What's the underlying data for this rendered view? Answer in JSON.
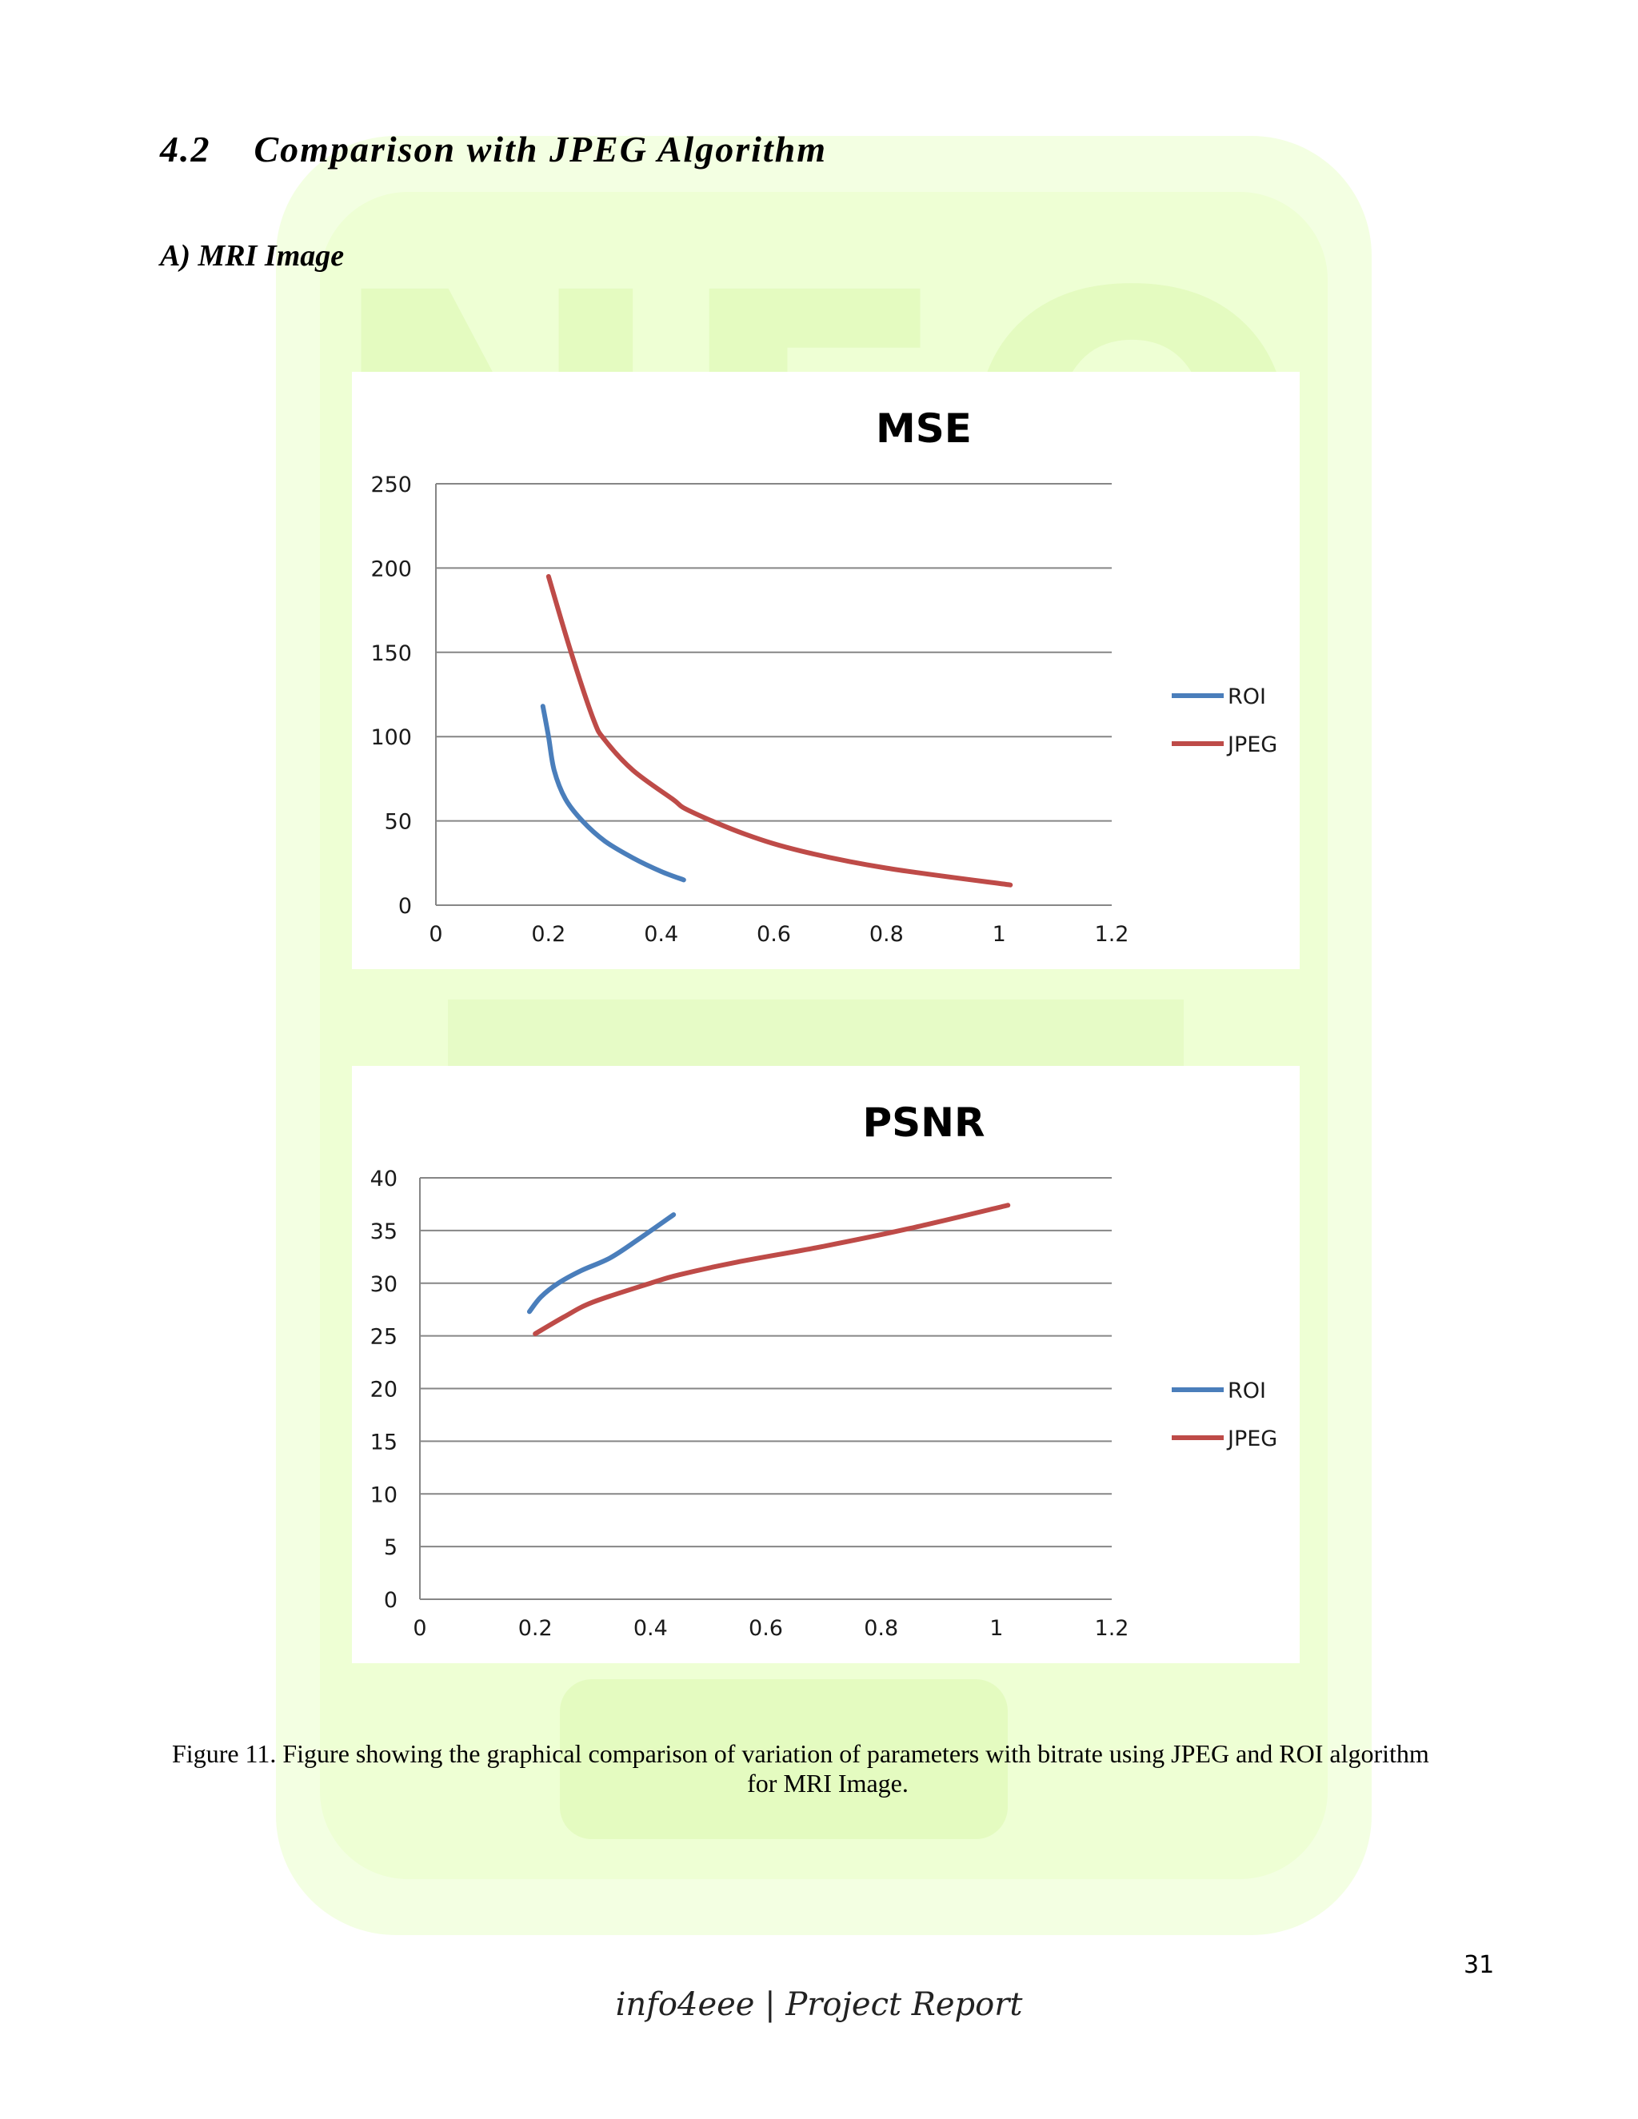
{
  "section_heading": {
    "number": "4.2",
    "title": "Comparison with JPEG Algorithm"
  },
  "sub_heading": "A) MRI Image",
  "chart_data": [
    {
      "type": "line",
      "title": "MSE",
      "xlabel": "",
      "ylabel": "",
      "xlim": [
        0,
        1.2
      ],
      "ylim": [
        0,
        250
      ],
      "x_ticks": [
        "0",
        "0.2",
        "0.4",
        "0.6",
        "0.8",
        "1",
        "1.2"
      ],
      "y_ticks": [
        "0",
        "50",
        "100",
        "150",
        "200",
        "250"
      ],
      "grid": true,
      "legend_position": "right",
      "series": [
        {
          "name": "ROI",
          "color": "#4a7ebb",
          "x": [
            0.19,
            0.2,
            0.21,
            0.23,
            0.26,
            0.3,
            0.35,
            0.4,
            0.44
          ],
          "y": [
            118,
            100,
            80,
            63,
            50,
            38,
            28,
            20,
            15
          ]
        },
        {
          "name": "JPEG",
          "color": "#be4b48",
          "x": [
            0.2,
            0.24,
            0.28,
            0.3,
            0.35,
            0.42,
            0.45,
            0.55,
            0.65,
            0.8,
            1.02
          ],
          "y": [
            195,
            150,
            110,
            98,
            80,
            63,
            56,
            42,
            32,
            22,
            12
          ]
        }
      ]
    },
    {
      "type": "line",
      "title": "PSNR",
      "xlabel": "",
      "ylabel": "",
      "xlim": [
        0,
        1.2
      ],
      "ylim": [
        0,
        40
      ],
      "x_ticks": [
        "0",
        "0.2",
        "0.4",
        "0.6",
        "0.8",
        "1",
        "1.2"
      ],
      "y_ticks": [
        "0",
        "5",
        "10",
        "15",
        "20",
        "25",
        "30",
        "35",
        "40"
      ],
      "grid": true,
      "legend_position": "right",
      "series": [
        {
          "name": "ROI",
          "color": "#4a7ebb",
          "x": [
            0.19,
            0.21,
            0.24,
            0.28,
            0.33,
            0.38,
            0.44
          ],
          "y": [
            27.3,
            28.7,
            30,
            31.2,
            32.4,
            34.2,
            36.5
          ]
        },
        {
          "name": "JPEG",
          "color": "#be4b48",
          "x": [
            0.2,
            0.25,
            0.3,
            0.4,
            0.45,
            0.55,
            0.7,
            0.85,
            1.02
          ],
          "y": [
            25.2,
            26.8,
            28.2,
            30,
            30.8,
            32,
            33.5,
            35.2,
            37.4
          ]
        }
      ]
    }
  ],
  "caption": {
    "line1": "Figure 11.  Figure showing the graphical comparison of variation of parameters with bitrate using JPEG and ROI algorithm",
    "line2": "for MRI Image."
  },
  "page_number": "31",
  "footer": "info4eee | Project Report",
  "watermark": {
    "text": "NEO",
    "color": "#f0ffd8"
  }
}
